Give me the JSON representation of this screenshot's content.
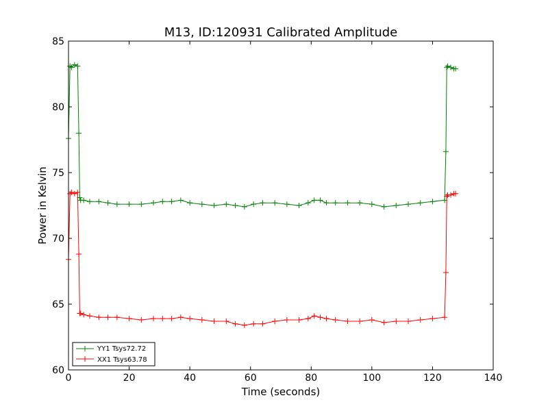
{
  "chart_data": {
    "type": "line",
    "title": "M13, ID:120931 Calibrated Amplitude",
    "xlabel": "Time (seconds)",
    "ylabel": "Power in Kelvin",
    "xlim": [
      0,
      140
    ],
    "ylim": [
      60,
      85
    ],
    "xticks": [
      "0",
      "20",
      "40",
      "60",
      "80",
      "100",
      "120",
      "140"
    ],
    "yticks": [
      "60",
      "65",
      "70",
      "75",
      "80",
      "85"
    ],
    "grid": false,
    "legend_position": "lower-left",
    "marker": "+",
    "series": [
      {
        "name": "YY1 Tsys72.72",
        "color": "#008000",
        "x": [
          0.0,
          0.5,
          1.0,
          2.0,
          3.0,
          3.4,
          3.7,
          4.0,
          5,
          7,
          10,
          13,
          16,
          20,
          24,
          28,
          31,
          34,
          37,
          40,
          44,
          48,
          52,
          55,
          58,
          61,
          64,
          68,
          72,
          76,
          79,
          81,
          83,
          85,
          88,
          92,
          96,
          100,
          104,
          108,
          112,
          116,
          120,
          124,
          124.4,
          124.7,
          125.0,
          126.0,
          127.0,
          127.6
        ],
        "y": [
          77.6,
          83.1,
          83.0,
          83.2,
          83.1,
          78.0,
          73.1,
          72.9,
          72.9,
          72.8,
          72.8,
          72.7,
          72.6,
          72.6,
          72.6,
          72.7,
          72.8,
          72.8,
          72.9,
          72.7,
          72.6,
          72.5,
          72.6,
          72.5,
          72.4,
          72.6,
          72.7,
          72.7,
          72.6,
          72.5,
          72.7,
          72.9,
          72.9,
          72.7,
          72.7,
          72.7,
          72.7,
          72.6,
          72.4,
          72.5,
          72.6,
          72.7,
          72.8,
          72.9,
          76.6,
          83.0,
          83.1,
          83.0,
          82.9,
          82.9
        ]
      },
      {
        "name": "XX1 Tsys63.78",
        "color": "#ff0000",
        "x": [
          0.0,
          0.5,
          1.0,
          2.0,
          3.0,
          3.4,
          3.7,
          4.0,
          5,
          7,
          10,
          13,
          16,
          20,
          24,
          28,
          31,
          34,
          37,
          40,
          44,
          48,
          52,
          55,
          58,
          61,
          64,
          68,
          72,
          76,
          79,
          81,
          83,
          85,
          88,
          92,
          96,
          100,
          104,
          108,
          112,
          116,
          120,
          124,
          124.4,
          124.7,
          125.0,
          126.0,
          127.0,
          127.6
        ],
        "y": [
          68.4,
          73.4,
          73.5,
          73.4,
          73.5,
          68.8,
          64.3,
          64.3,
          64.2,
          64.1,
          64.0,
          64.0,
          64.0,
          63.9,
          63.8,
          63.9,
          63.9,
          63.9,
          64.0,
          63.9,
          63.8,
          63.7,
          63.7,
          63.5,
          63.4,
          63.5,
          63.5,
          63.7,
          63.8,
          63.8,
          63.9,
          64.1,
          64.0,
          63.9,
          63.8,
          63.7,
          63.7,
          63.8,
          63.6,
          63.7,
          63.7,
          63.8,
          63.9,
          64.0,
          67.4,
          73.2,
          73.3,
          73.3,
          73.4,
          73.4
        ]
      }
    ]
  }
}
